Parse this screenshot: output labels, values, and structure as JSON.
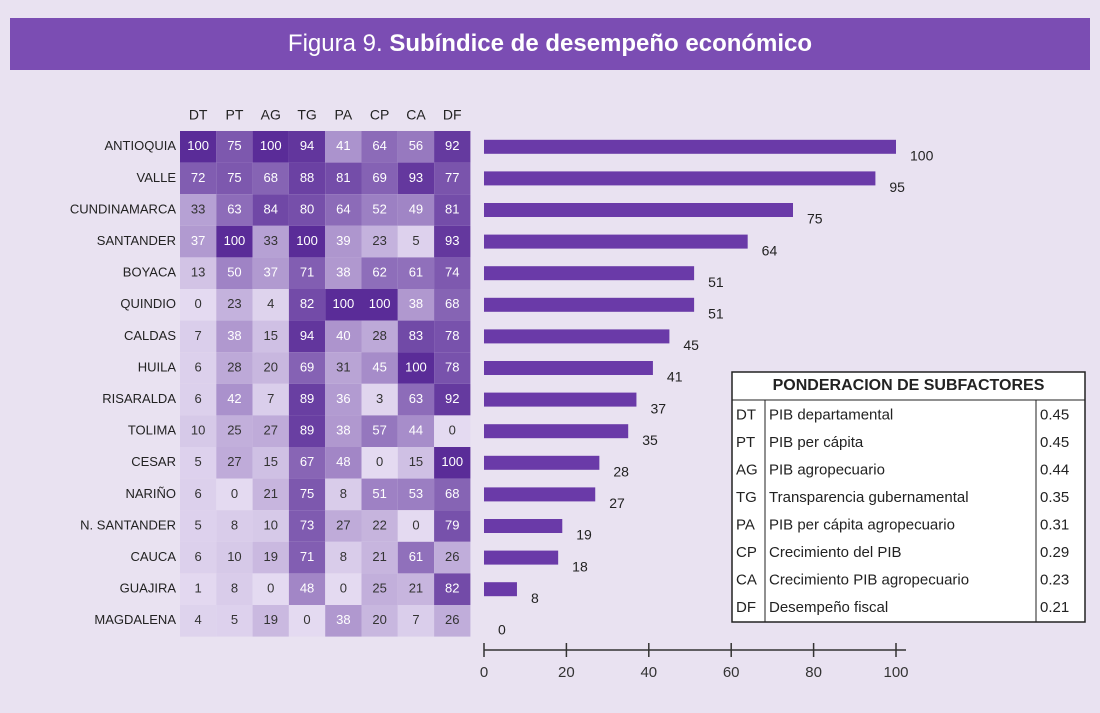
{
  "figure_label": "Figura 9.",
  "chart_data": [
    {
      "type": "heatmap",
      "columns": [
        "DT",
        "PT",
        "AG",
        "TG",
        "PA",
        "CP",
        "CA",
        "DF"
      ],
      "rows": [
        "ANTIOQUIA",
        "VALLE",
        "CUNDINAMARCA",
        "SANTANDER",
        "BOYACA",
        "QUINDIO",
        "CALDAS",
        "HUILA",
        "RISARALDA",
        "TOLIMA",
        "CESAR",
        "NARIÑO",
        "N. SANTANDER",
        "CAUCA",
        "GUAJIRA",
        "MAGDALENA"
      ],
      "values": [
        [
          100,
          75,
          100,
          94,
          41,
          64,
          56,
          92
        ],
        [
          72,
          75,
          68,
          88,
          81,
          69,
          93,
          77
        ],
        [
          33,
          63,
          84,
          80,
          64,
          52,
          49,
          81
        ],
        [
          37,
          100,
          33,
          100,
          39,
          23,
          5,
          93
        ],
        [
          13,
          50,
          37,
          71,
          38,
          62,
          61,
          74
        ],
        [
          0,
          23,
          4,
          82,
          100,
          100,
          38,
          68
        ],
        [
          7,
          38,
          15,
          94,
          40,
          28,
          83,
          78
        ],
        [
          6,
          28,
          20,
          69,
          31,
          45,
          100,
          78
        ],
        [
          6,
          42,
          7,
          89,
          36,
          3,
          63,
          92
        ],
        [
          10,
          25,
          27,
          89,
          38,
          57,
          44,
          0
        ],
        [
          5,
          27,
          15,
          67,
          48,
          0,
          15,
          100
        ],
        [
          6,
          0,
          21,
          75,
          8,
          51,
          53,
          68
        ],
        [
          5,
          8,
          10,
          73,
          27,
          22,
          0,
          79
        ],
        [
          6,
          10,
          19,
          71,
          8,
          21,
          61,
          26
        ],
        [
          1,
          8,
          0,
          48,
          0,
          25,
          21,
          82
        ],
        [
          4,
          5,
          19,
          0,
          38,
          20,
          7,
          26
        ]
      ],
      "colors": [
        "#e4daf1",
        "#5a2c98"
      ]
    },
    {
      "type": "bar",
      "orientation": "horizontal",
      "title": "Subíndice de desempeño económico",
      "values": [
        100,
        95,
        75,
        64,
        51,
        51,
        45,
        41,
        37,
        35,
        28,
        27,
        19,
        18,
        8,
        0
      ],
      "color": "#6a3aa8",
      "xlim": [
        0,
        100
      ],
      "xticks": [
        0,
        20,
        40,
        60,
        80,
        100
      ]
    }
  ],
  "weights_table": {
    "title": "PONDERACION DE SUBFACTORES",
    "rows": [
      [
        "DT",
        "PIB departamental",
        0.45
      ],
      [
        "PT",
        "PIB per cápita",
        0.45
      ],
      [
        "AG",
        "PIB agropecuario",
        0.44
      ],
      [
        "TG",
        "Transparencia gubernamental",
        0.35
      ],
      [
        "PA",
        "PIB per cápita agropecuario",
        0.31
      ],
      [
        "CP",
        "Crecimiento del PIB",
        0.29
      ],
      [
        "CA",
        "Crecimiento PIB agropecuario",
        0.23
      ],
      [
        "DF",
        "Desempeño fiscal",
        0.21
      ]
    ]
  }
}
